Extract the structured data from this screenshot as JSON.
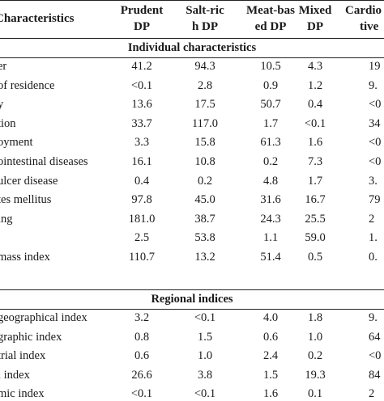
{
  "header": {
    "characteristics": "Characteristics",
    "columns": [
      {
        "line1": "Prudent",
        "line2": "DP"
      },
      {
        "line1": "Salt-ric",
        "line2": "h DP"
      },
      {
        "line1": "Meat-bas",
        "line2": "ed DP"
      },
      {
        "line1": "Mixed",
        "line2": "DP"
      },
      {
        "line1": "Cardio",
        "line2": "tive"
      }
    ]
  },
  "sections": [
    {
      "title": "Individual characteristics",
      "rows": [
        {
          "label": "er",
          "values": [
            "41.2",
            "94.3",
            "10.5",
            "4.3",
            "19"
          ]
        },
        {
          "label": "of residence",
          "values": [
            "<0.1",
            "2.8",
            "0.9",
            "1.2",
            "9."
          ]
        },
        {
          "label": "y",
          "values": [
            "13.6",
            "17.5",
            "50.7",
            "0.4",
            "<0"
          ]
        },
        {
          "label": "tion",
          "values": [
            "33.7",
            "117.0",
            "1.7",
            "<0.1",
            "34"
          ]
        },
        {
          "label": "oyment",
          "values": [
            "3.3",
            "15.8",
            "61.3",
            "1.6",
            "<0"
          ]
        },
        {
          "label": "ointestinal diseases",
          "values": [
            "16.1",
            "10.8",
            "0.2",
            "7.3",
            "<0"
          ]
        },
        {
          "label": "ulcer disease",
          "values": [
            "0.4",
            "0.2",
            "4.8",
            "1.7",
            "3."
          ]
        },
        {
          "label": "tes mellitus",
          "values": [
            "97.8",
            "45.0",
            "31.6",
            "16.7",
            "79"
          ]
        },
        {
          "label": "ing",
          "values": [
            "181.0",
            "38.7",
            "24.3",
            "25.5",
            "2"
          ]
        },
        {
          "label": "",
          "values": [
            "2.5",
            "53.8",
            "1.1",
            "59.0",
            "1."
          ]
        },
        {
          "label": "mass index",
          "values": [
            "110.7",
            "13.2",
            "51.4",
            "0.5",
            "0."
          ]
        }
      ]
    },
    {
      "title": "Regional indices",
      "rows": [
        {
          "label": "geographical index",
          "values": [
            "3.2",
            "<0.1",
            "4.0",
            "1.8",
            "9."
          ]
        },
        {
          "label": "graphic index",
          "values": [
            "0.8",
            "1.5",
            "0.6",
            "1.0",
            "64"
          ]
        },
        {
          "label": "trial index",
          "values": [
            "0.6",
            "1.0",
            "2.4",
            "0.2",
            "<0"
          ]
        },
        {
          "label": "l index",
          "values": [
            "26.6",
            "3.8",
            "1.5",
            "19.3",
            "84"
          ]
        },
        {
          "label": "mic index",
          "values": [
            "<0.1",
            "<0.1",
            "1.6",
            "0.1",
            "2"
          ]
        }
      ]
    }
  ]
}
